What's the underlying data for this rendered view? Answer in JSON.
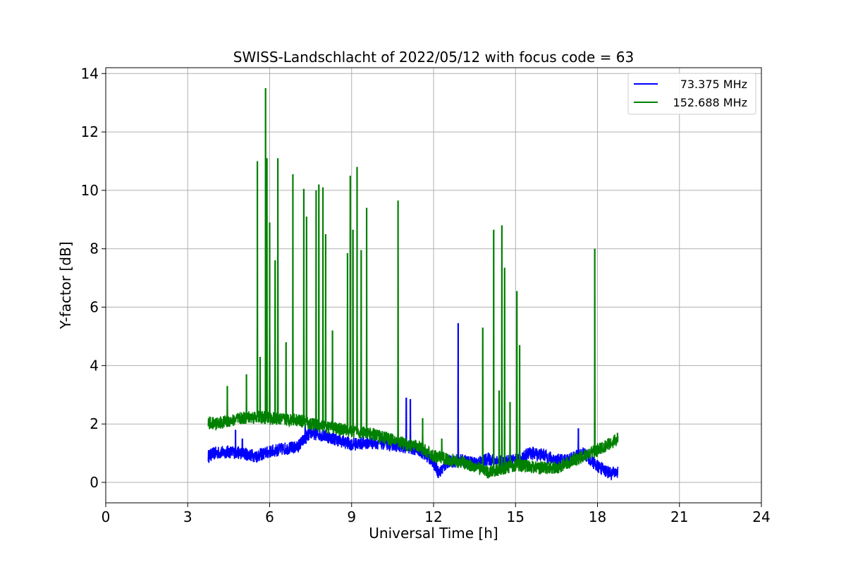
{
  "chart_data": {
    "type": "line",
    "title": "SWISS-Landschlacht of 2022/05/12 with focus code = 63",
    "xlabel": "Universal Time [h]",
    "ylabel": "Y-factor [dB]",
    "xlim": [
      0,
      24
    ],
    "ylim": [
      -0.7,
      14.2
    ],
    "xticks": [
      0,
      3,
      6,
      9,
      12,
      15,
      18,
      21,
      24
    ],
    "yticks": [
      0,
      2,
      4,
      6,
      8,
      10,
      12,
      14
    ],
    "grid": true,
    "legend_position": "top-right",
    "series": [
      {
        "name": "73.375 MHz",
        "color": "#0000ff",
        "x": [
          3.75,
          4.0,
          4.5,
          5.0,
          5.5,
          6.0,
          6.5,
          7.0,
          7.5,
          8.0,
          8.5,
          9.0,
          9.5,
          10.0,
          10.5,
          11.0,
          11.5,
          12.0,
          12.2,
          12.5,
          13.0,
          13.5,
          14.0,
          14.5,
          15.0,
          15.5,
          16.0,
          16.5,
          17.0,
          17.5,
          18.0,
          18.5,
          18.75
        ],
        "y": [
          0.9,
          1.0,
          1.05,
          1.0,
          0.9,
          1.05,
          1.15,
          1.2,
          1.7,
          1.6,
          1.45,
          1.3,
          1.35,
          1.35,
          1.3,
          1.2,
          1.1,
          0.7,
          0.3,
          0.7,
          0.75,
          0.65,
          0.8,
          0.7,
          0.75,
          1.0,
          0.95,
          0.75,
          0.8,
          1.0,
          0.55,
          0.3,
          0.35
        ],
        "spikes": [
          [
            4.75,
            1.8
          ],
          [
            5.0,
            1.5
          ],
          [
            7.3,
            2.0
          ],
          [
            11.0,
            2.9
          ],
          [
            11.15,
            2.85
          ],
          [
            12.9,
            5.45
          ],
          [
            17.3,
            1.85
          ]
        ]
      },
      {
        "name": "152.688 MHz",
        "color": "#008000",
        "x": [
          3.75,
          4.0,
          4.5,
          5.0,
          5.5,
          6.0,
          6.5,
          7.0,
          7.5,
          8.0,
          8.5,
          9.0,
          9.5,
          10.0,
          10.5,
          11.0,
          11.5,
          12.0,
          12.5,
          13.0,
          13.5,
          14.0,
          14.5,
          15.0,
          15.5,
          16.0,
          16.5,
          17.0,
          17.5,
          18.0,
          18.5,
          18.75
        ],
        "y": [
          2.05,
          2.0,
          2.1,
          2.2,
          2.25,
          2.2,
          2.15,
          2.15,
          2.0,
          1.9,
          1.85,
          1.75,
          1.7,
          1.6,
          1.45,
          1.3,
          1.2,
          0.9,
          0.8,
          0.7,
          0.55,
          0.35,
          0.45,
          0.6,
          0.55,
          0.5,
          0.5,
          0.7,
          0.9,
          1.1,
          1.35,
          1.5
        ],
        "spikes": [
          [
            4.45,
            3.3
          ],
          [
            5.15,
            3.7
          ],
          [
            5.55,
            11.0
          ],
          [
            5.65,
            4.3
          ],
          [
            5.85,
            13.5
          ],
          [
            5.9,
            11.1
          ],
          [
            6.0,
            8.9
          ],
          [
            6.2,
            7.6
          ],
          [
            6.3,
            11.1
          ],
          [
            6.6,
            4.8
          ],
          [
            6.85,
            10.55
          ],
          [
            7.25,
            10.05
          ],
          [
            7.35,
            9.1
          ],
          [
            7.7,
            10.0
          ],
          [
            7.8,
            10.2
          ],
          [
            7.95,
            10.1
          ],
          [
            8.05,
            8.5
          ],
          [
            8.3,
            5.2
          ],
          [
            8.85,
            7.85
          ],
          [
            8.95,
            10.5
          ],
          [
            9.05,
            8.65
          ],
          [
            9.2,
            10.8
          ],
          [
            9.35,
            7.95
          ],
          [
            9.55,
            9.4
          ],
          [
            10.7,
            9.65
          ],
          [
            11.6,
            2.2
          ],
          [
            12.3,
            1.5
          ],
          [
            13.8,
            5.3
          ],
          [
            14.2,
            8.65
          ],
          [
            14.4,
            3.15
          ],
          [
            14.5,
            8.8
          ],
          [
            14.6,
            7.35
          ],
          [
            14.8,
            2.75
          ],
          [
            15.05,
            6.55
          ],
          [
            15.15,
            4.7
          ],
          [
            17.9,
            8.0
          ]
        ]
      }
    ]
  }
}
